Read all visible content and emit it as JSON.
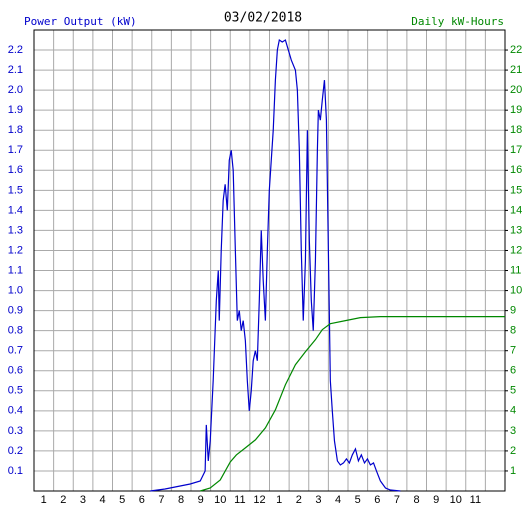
{
  "chart_data": {
    "type": "line",
    "title": "03/02/2018",
    "y_label": "Power Output (kW)",
    "y2_label": "Daily kW-Hours",
    "xlim": [
      0,
      24
    ],
    "xticks": [
      1,
      2,
      3,
      4,
      5,
      6,
      7,
      8,
      9,
      10,
      11,
      12,
      {
        "value": 13,
        "label": "1"
      },
      {
        "value": 14,
        "label": "2"
      },
      {
        "value": 15,
        "label": "3"
      },
      {
        "value": 16,
        "label": "4"
      },
      {
        "value": 17,
        "label": "5"
      },
      {
        "value": 18,
        "label": "6"
      },
      {
        "value": 19,
        "label": "7"
      },
      {
        "value": 20,
        "label": "8"
      },
      {
        "value": 21,
        "label": "9"
      },
      {
        "value": 22,
        "label": "10"
      },
      {
        "value": 23,
        "label": "11"
      }
    ],
    "ylim": [
      0,
      2.3
    ],
    "yticks": [
      0.1,
      0.2,
      0.3,
      0.4,
      0.5,
      0.6,
      0.7,
      0.8,
      0.9,
      {
        "value": 1,
        "label": "1.0"
      },
      1.1,
      1.2,
      1.3,
      1.4,
      1.5,
      1.6,
      1.7,
      1.8,
      1.9,
      {
        "value": 2,
        "label": "2.0"
      },
      2.1,
      2.2
    ],
    "y2lim": [
      0,
      23
    ],
    "y2ticks": [
      1,
      2,
      3,
      4,
      5,
      6,
      7,
      8,
      9,
      10,
      11,
      12,
      13,
      14,
      15,
      16,
      17,
      18,
      19,
      20,
      21,
      22
    ],
    "grid": true,
    "series": [
      {
        "name": "Power Output (kW)",
        "color": "#0000cc",
        "x": [
          5.92,
          6.68,
          7.19,
          7.96,
          8.47,
          8.62,
          8.72,
          8.78,
          8.88,
          8.98,
          9.13,
          9.29,
          9.39,
          9.44,
          9.54,
          9.64,
          9.74,
          9.85,
          9.95,
          10.05,
          10.15,
          10.26,
          10.36,
          10.46,
          10.56,
          10.66,
          10.77,
          10.87,
          10.97,
          11.07,
          11.17,
          11.28,
          11.38,
          11.48,
          11.58,
          11.68,
          11.79,
          11.89,
          11.99,
          12.09,
          12.19,
          12.3,
          12.4,
          12.5,
          12.65,
          12.81,
          12.96,
          13.11,
          13.32,
          13.42,
          13.52,
          13.62,
          13.72,
          13.83,
          13.93,
          14.03,
          14.13,
          14.23,
          14.34,
          14.44,
          14.49,
          14.59,
          14.69,
          14.8,
          14.9,
          15.0,
          15.1,
          15.2,
          15.31,
          15.46,
          15.61,
          15.77,
          15.92,
          16.07,
          16.22,
          16.38,
          16.53,
          16.68,
          16.84,
          16.99,
          17.14,
          17.3,
          17.45,
          17.65,
          17.91,
          18.16,
          18.67
        ],
        "values": [
          0,
          0.01,
          0.02,
          0.035,
          0.05,
          0.08,
          0.1,
          0.33,
          0.15,
          0.25,
          0.55,
          0.95,
          1.1,
          0.85,
          1.2,
          1.45,
          1.53,
          1.4,
          1.65,
          1.7,
          1.6,
          1.2,
          0.85,
          0.9,
          0.8,
          0.85,
          0.75,
          0.55,
          0.4,
          0.5,
          0.65,
          0.7,
          0.65,
          0.95,
          1.3,
          1.05,
          0.85,
          1.2,
          1.5,
          1.65,
          1.8,
          2.05,
          2.2,
          2.25,
          2.24,
          2.25,
          2.2,
          2.15,
          2.1,
          2.0,
          1.7,
          1.2,
          0.85,
          1.15,
          1.8,
          1.25,
          0.95,
          0.8,
          1.15,
          1.7,
          1.9,
          1.85,
          1.95,
          2.05,
          1.85,
          1.2,
          0.55,
          0.4,
          0.25,
          0.15,
          0.13,
          0.14,
          0.16,
          0.14,
          0.18,
          0.21,
          0.15,
          0.18,
          0.14,
          0.16,
          0.13,
          0.14,
          0.1,
          0.05,
          0.015,
          0.005,
          0
        ]
      },
      {
        "name": "Daily kW-Hours",
        "color": "#008800",
        "axis": "y2",
        "x": [
          8.47,
          8.98,
          9.49,
          10.0,
          10.31,
          10.77,
          11.28,
          11.79,
          12.3,
          12.81,
          13.32,
          13.83,
          14.34,
          14.69,
          15.1,
          15.87,
          16.63,
          17.65,
          18.67,
          24
        ],
        "values": [
          0,
          0.15,
          0.55,
          1.45,
          1.8,
          2.15,
          2.55,
          3.15,
          4.05,
          5.3,
          6.3,
          6.95,
          7.55,
          8.05,
          8.35,
          8.5,
          8.65,
          8.7,
          8.7,
          8.7
        ]
      }
    ]
  }
}
